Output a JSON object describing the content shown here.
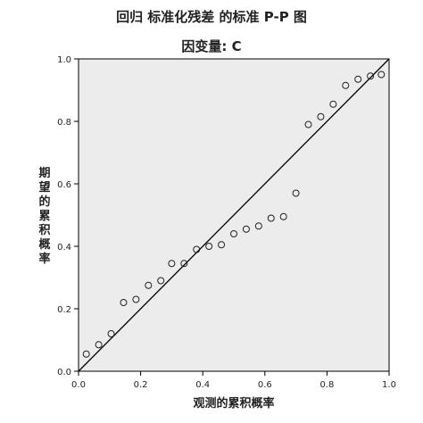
{
  "chart_data": {
    "type": "scatter",
    "title": "回归 标准化残差 的标准 P-P 图",
    "subtitle": "因变量: C",
    "xlabel": "观测的累积概率",
    "ylabel": "期望的累积概率",
    "xlim": [
      0.0,
      1.0
    ],
    "ylim": [
      0.0,
      1.0
    ],
    "xticks": [
      "0.0",
      "0.2",
      "0.4",
      "0.6",
      "0.8",
      "1.0"
    ],
    "yticks": [
      "0.0",
      "0.2",
      "0.4",
      "0.6",
      "0.8",
      "1.0"
    ],
    "grid": false,
    "legend": "none",
    "reference_line": [
      [
        0,
        0
      ],
      [
        1,
        1
      ]
    ],
    "points": [
      {
        "x": 0.025,
        "y": 0.055
      },
      {
        "x": 0.065,
        "y": 0.085
      },
      {
        "x": 0.105,
        "y": 0.12
      },
      {
        "x": 0.145,
        "y": 0.22
      },
      {
        "x": 0.185,
        "y": 0.23
      },
      {
        "x": 0.225,
        "y": 0.275
      },
      {
        "x": 0.265,
        "y": 0.29
      },
      {
        "x": 0.3,
        "y": 0.345
      },
      {
        "x": 0.34,
        "y": 0.345
      },
      {
        "x": 0.38,
        "y": 0.39
      },
      {
        "x": 0.42,
        "y": 0.4
      },
      {
        "x": 0.46,
        "y": 0.405
      },
      {
        "x": 0.5,
        "y": 0.44
      },
      {
        "x": 0.54,
        "y": 0.455
      },
      {
        "x": 0.58,
        "y": 0.465
      },
      {
        "x": 0.62,
        "y": 0.49
      },
      {
        "x": 0.66,
        "y": 0.495
      },
      {
        "x": 0.7,
        "y": 0.57
      },
      {
        "x": 0.74,
        "y": 0.79
      },
      {
        "x": 0.78,
        "y": 0.815
      },
      {
        "x": 0.82,
        "y": 0.855
      },
      {
        "x": 0.86,
        "y": 0.915
      },
      {
        "x": 0.9,
        "y": 0.935
      },
      {
        "x": 0.94,
        "y": 0.945
      },
      {
        "x": 0.975,
        "y": 0.95
      }
    ],
    "colors": {
      "plot_background": "#ececec",
      "marker": "#222222",
      "line": "#000000"
    }
  }
}
